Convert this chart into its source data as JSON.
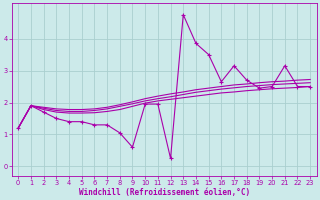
{
  "xlabel": "Windchill (Refroidissement éolien,°C)",
  "bg_color": "#cceaea",
  "grid_color": "#aacfcf",
  "line_color": "#aa00aa",
  "spine_color": "#aa00aa",
  "x_ticks": [
    0,
    1,
    2,
    3,
    4,
    5,
    6,
    7,
    8,
    9,
    10,
    11,
    12,
    13,
    14,
    15,
    16,
    17,
    18,
    19,
    20,
    21,
    22,
    23
  ],
  "y_ticks": [
    0,
    1,
    2,
    3,
    4
  ],
  "xlim": [
    -0.5,
    23.5
  ],
  "ylim": [
    -0.3,
    5.1
  ],
  "series0": [
    1.2,
    1.9,
    1.7,
    1.5,
    1.4,
    1.4,
    1.3,
    1.3,
    1.05,
    0.6,
    1.95,
    1.95,
    0.25,
    4.75,
    3.85,
    3.5,
    2.65,
    3.15,
    2.7,
    2.45,
    2.5,
    3.15,
    2.5,
    2.5
  ],
  "series1": [
    1.2,
    1.9,
    1.82,
    1.75,
    1.72,
    1.72,
    1.75,
    1.8,
    1.88,
    1.96,
    2.05,
    2.12,
    2.18,
    2.25,
    2.32,
    2.37,
    2.42,
    2.46,
    2.5,
    2.53,
    2.56,
    2.58,
    2.6,
    2.62
  ],
  "series2": [
    1.2,
    1.9,
    1.78,
    1.7,
    1.67,
    1.67,
    1.68,
    1.72,
    1.78,
    1.88,
    1.98,
    2.05,
    2.1,
    2.15,
    2.2,
    2.25,
    2.3,
    2.33,
    2.37,
    2.4,
    2.43,
    2.45,
    2.47,
    2.5
  ],
  "series3": [
    1.2,
    1.9,
    1.85,
    1.8,
    1.78,
    1.78,
    1.8,
    1.85,
    1.93,
    2.02,
    2.12,
    2.2,
    2.27,
    2.33,
    2.4,
    2.45,
    2.5,
    2.55,
    2.58,
    2.62,
    2.65,
    2.67,
    2.7,
    2.72
  ],
  "xlabel_fontsize": 5.5,
  "tick_fontsize": 4.8
}
